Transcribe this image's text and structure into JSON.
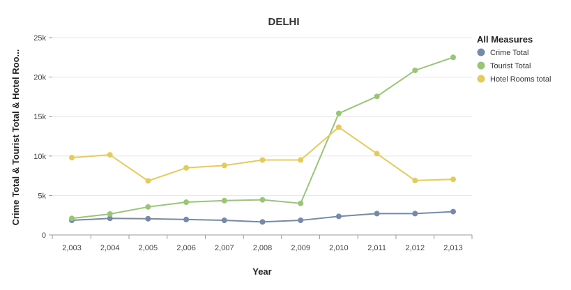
{
  "chart_data": {
    "type": "line",
    "title": "DELHI",
    "xlabel": "Year",
    "ylabel": "Crime Total & Tourist Total & Hotel Roo...",
    "categories": [
      "2,003",
      "2,004",
      "2,005",
      "2,006",
      "2,007",
      "2,008",
      "2,009",
      "2,010",
      "2,011",
      "2,012",
      "2,013"
    ],
    "ylim": [
      0,
      25000
    ],
    "yticks": [
      0,
      5000,
      10000,
      15000,
      20000,
      25000
    ],
    "ytick_labels": [
      "0",
      "5k",
      "10k",
      "15k",
      "20k",
      "25k"
    ],
    "grid": "horizontal",
    "legend_title": "All Measures",
    "legend_position": "right",
    "series": [
      {
        "name": "Crime Total",
        "color": "#7689ab",
        "values": [
          1850,
          2100,
          2050,
          1950,
          1850,
          1650,
          1850,
          2350,
          2700,
          2700,
          2950
        ]
      },
      {
        "name": "Tourist Total",
        "color": "#97c674",
        "values": [
          2100,
          2650,
          3550,
          4150,
          4350,
          4450,
          4000,
          15400,
          17550,
          20850,
          22500
        ]
      },
      {
        "name": "Hotel Rooms total",
        "color": "#e5cb5c",
        "values": [
          9800,
          10150,
          6850,
          8500,
          8800,
          9500,
          9500,
          13650,
          10300,
          6900,
          7050
        ]
      }
    ]
  }
}
